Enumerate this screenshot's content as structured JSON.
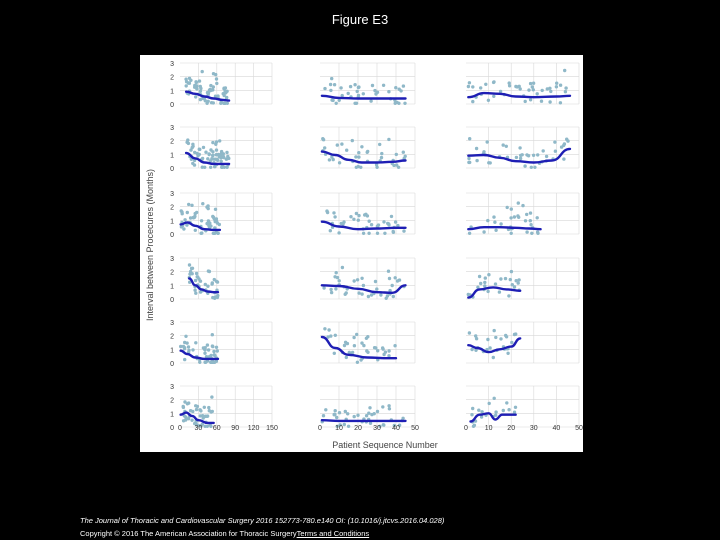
{
  "title": "Figure E3",
  "figure": {
    "ylabel": "Interval between Procecures (Months)",
    "xlabel": "Patient Sequence Number",
    "y_ticks": [
      "0",
      "1",
      "2",
      "3"
    ],
    "x_ticks": [
      "0",
      "30",
      "60",
      "90",
      "120",
      "150",
      "0",
      "10",
      "20",
      "30",
      "40",
      "50",
      "0",
      "10",
      "20",
      "30",
      "40",
      "50"
    ]
  },
  "footer": {
    "journal": "The Journal of Thoracic and Cardiovascular Surgery 2016 152773-780.e140 OI: (10.1016/j.jtcvs.2016.04.028)",
    "copyright": "Copyright © 2016 The American Association for Thoracic Surgery",
    "terms": "Terms and Conditions"
  },
  "colors": {
    "points": "#8fb8c8",
    "trend": "#1e1eb4",
    "grid": "#d8d8d8"
  },
  "chart_data": [
    {
      "type": "scatter",
      "panel": "r1c1",
      "xlim": [
        0,
        150
      ],
      "ylim": [
        0,
        3
      ],
      "n": 70,
      "trend": [
        [
          10,
          0.9
        ],
        [
          25,
          0.75
        ],
        [
          40,
          0.55
        ],
        [
          55,
          0.4
        ],
        [
          70,
          0.3
        ],
        [
          80,
          0.25
        ]
      ]
    },
    {
      "type": "scatter",
      "panel": "r1c2",
      "xlim": [
        0,
        50
      ],
      "ylim": [
        0,
        3
      ],
      "n": 40,
      "trend": [
        [
          1,
          0.6
        ],
        [
          10,
          0.45
        ],
        [
          20,
          0.4
        ],
        [
          30,
          0.4
        ],
        [
          40,
          0.4
        ],
        [
          45,
          0.4
        ]
      ]
    },
    {
      "type": "scatter",
      "panel": "r1c3",
      "xlim": [
        0,
        50
      ],
      "ylim": [
        0,
        3
      ],
      "n": 42,
      "trend": [
        [
          1,
          0.5
        ],
        [
          8,
          0.8
        ],
        [
          15,
          0.75
        ],
        [
          22,
          0.55
        ],
        [
          30,
          0.5
        ],
        [
          40,
          0.55
        ],
        [
          46,
          0.6
        ]
      ]
    },
    {
      "type": "scatter",
      "panel": "r2c1",
      "xlim": [
        0,
        150
      ],
      "ylim": [
        0,
        3
      ],
      "n": 70,
      "trend": [
        [
          10,
          1.1
        ],
        [
          25,
          0.7
        ],
        [
          40,
          0.4
        ],
        [
          55,
          0.3
        ],
        [
          70,
          0.3
        ],
        [
          80,
          0.3
        ]
      ]
    },
    {
      "type": "scatter",
      "panel": "r2c2",
      "xlim": [
        0,
        50
      ],
      "ylim": [
        0,
        3
      ],
      "n": 40,
      "trend": [
        [
          1,
          1.2
        ],
        [
          8,
          0.95
        ],
        [
          15,
          0.6
        ],
        [
          22,
          0.4
        ],
        [
          30,
          0.4
        ],
        [
          38,
          0.45
        ],
        [
          45,
          0.55
        ]
      ]
    },
    {
      "type": "scatter",
      "panel": "r2c3",
      "xlim": [
        0,
        50
      ],
      "ylim": [
        0,
        3
      ],
      "n": 42,
      "trend": [
        [
          1,
          0.9
        ],
        [
          8,
          0.95
        ],
        [
          15,
          0.75
        ],
        [
          22,
          0.5
        ],
        [
          30,
          0.4
        ],
        [
          38,
          0.55
        ],
        [
          46,
          1.4
        ]
      ]
    },
    {
      "type": "scatter",
      "panel": "r3c1",
      "xlim": [
        0,
        150
      ],
      "ylim": [
        0,
        3
      ],
      "n": 55,
      "trend": [
        [
          1,
          0.7
        ],
        [
          12,
          0.85
        ],
        [
          25,
          0.6
        ],
        [
          40,
          0.35
        ],
        [
          55,
          0.3
        ],
        [
          65,
          0.3
        ]
      ]
    },
    {
      "type": "scatter",
      "panel": "r3c2",
      "xlim": [
        0,
        50
      ],
      "ylim": [
        0,
        3
      ],
      "n": 40,
      "trend": [
        [
          1,
          0.9
        ],
        [
          10,
          0.55
        ],
        [
          20,
          0.35
        ],
        [
          30,
          0.4
        ],
        [
          40,
          0.45
        ],
        [
          45,
          0.45
        ]
      ]
    },
    {
      "type": "scatter",
      "panel": "r3c3",
      "xlim": [
        0,
        50
      ],
      "ylim": [
        0,
        3
      ],
      "n": 32,
      "trend": [
        [
          1,
          0.35
        ],
        [
          8,
          0.5
        ],
        [
          15,
          0.5
        ],
        [
          22,
          0.45
        ],
        [
          28,
          0.4
        ],
        [
          33,
          0.35
        ]
      ]
    },
    {
      "type": "scatter",
      "panel": "r4c1",
      "xlim": [
        0,
        150
      ],
      "ylim": [
        0,
        3
      ],
      "n": 40,
      "trend": [
        [
          15,
          1.5
        ],
        [
          25,
          1.0
        ],
        [
          35,
          0.7
        ],
        [
          45,
          0.55
        ],
        [
          55,
          0.5
        ],
        [
          62,
          0.5
        ]
      ]
    },
    {
      "type": "scatter",
      "panel": "r4c2",
      "xlim": [
        0,
        50
      ],
      "ylim": [
        0,
        3
      ],
      "n": 40,
      "trend": [
        [
          1,
          1.0
        ],
        [
          10,
          0.95
        ],
        [
          20,
          0.75
        ],
        [
          30,
          0.5
        ],
        [
          38,
          0.45
        ],
        [
          45,
          1.0
        ]
      ]
    },
    {
      "type": "scatter",
      "panel": "r4c3",
      "xlim": [
        0,
        50
      ],
      "ylim": [
        0,
        3
      ],
      "n": 25,
      "trend": [
        [
          1,
          0.1
        ],
        [
          6,
          0.7
        ],
        [
          12,
          0.85
        ],
        [
          18,
          0.7
        ],
        [
          24,
          0.6
        ]
      ]
    },
    {
      "type": "scatter",
      "panel": "r5c1",
      "xlim": [
        0,
        150
      ],
      "ylim": [
        0,
        3
      ],
      "n": 50,
      "trend": [
        [
          1,
          0.9
        ],
        [
          12,
          0.65
        ],
        [
          25,
          0.4
        ],
        [
          40,
          0.3
        ],
        [
          55,
          0.3
        ],
        [
          62,
          0.3
        ]
      ]
    },
    {
      "type": "scatter",
      "panel": "r5c2",
      "xlim": [
        0,
        50
      ],
      "ylim": [
        0,
        3
      ],
      "n": 38,
      "trend": [
        [
          1,
          1.9
        ],
        [
          8,
          1.1
        ],
        [
          15,
          0.6
        ],
        [
          25,
          0.4
        ],
        [
          35,
          0.35
        ],
        [
          40,
          0.35
        ]
      ]
    },
    {
      "type": "scatter",
      "panel": "r5c3",
      "xlim": [
        0,
        50
      ],
      "ylim": [
        0,
        3
      ],
      "n": 25,
      "trend": [
        [
          1,
          1.3
        ],
        [
          5,
          1.1
        ],
        [
          10,
          0.8
        ],
        [
          15,
          1.0
        ],
        [
          20,
          1.2
        ],
        [
          24,
          1.8
        ]
      ]
    },
    {
      "type": "scatter",
      "panel": "r6c1",
      "xlim": [
        0,
        150
      ],
      "ylim": [
        0,
        3
      ],
      "n": 45,
      "trend": [
        [
          1,
          0.9
        ],
        [
          10,
          1.05
        ],
        [
          20,
          0.8
        ],
        [
          30,
          0.5
        ],
        [
          45,
          0.3
        ],
        [
          55,
          0.3
        ]
      ]
    },
    {
      "type": "scatter",
      "panel": "r6c2",
      "xlim": [
        0,
        50
      ],
      "ylim": [
        0,
        3
      ],
      "n": 40,
      "trend": [
        [
          1,
          0.5
        ],
        [
          10,
          0.45
        ],
        [
          20,
          0.45
        ],
        [
          30,
          0.45
        ],
        [
          40,
          0.45
        ],
        [
          45,
          0.45
        ]
      ]
    },
    {
      "type": "scatter",
      "panel": "r6c3",
      "xlim": [
        0,
        50
      ],
      "ylim": [
        0,
        3
      ],
      "n": 20,
      "trend": [
        [
          2,
          0.4
        ],
        [
          6,
          0.9
        ],
        [
          10,
          1.0
        ],
        [
          13,
          0.55
        ],
        [
          16,
          0.9
        ],
        [
          22,
          0.9
        ]
      ]
    }
  ]
}
